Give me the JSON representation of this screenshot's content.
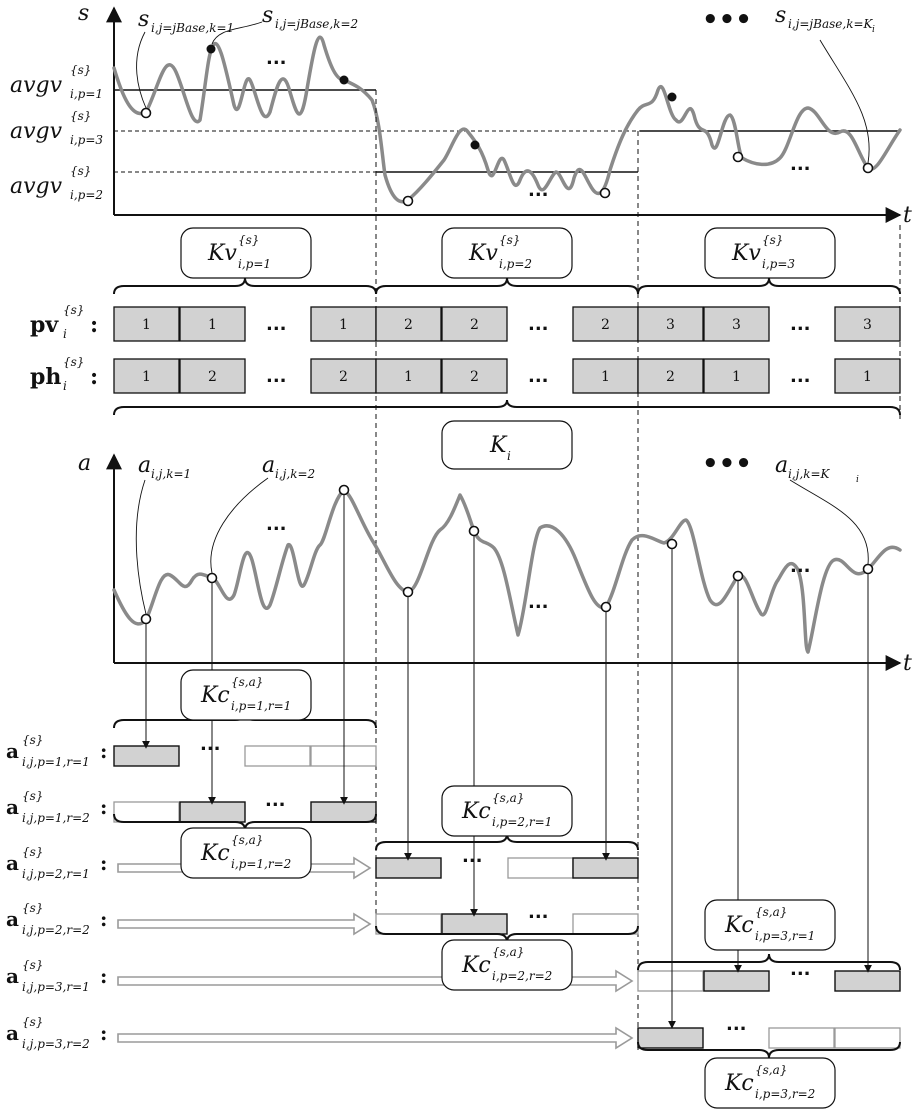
{
  "axes": {
    "top_y": "s",
    "top_x": "t",
    "bottom_y": "a",
    "bottom_x": "t"
  },
  "avg_labels": [
    {
      "base": "avgv",
      "sup": "{s}",
      "sub": "i,p=1"
    },
    {
      "base": "avgv",
      "sup": "{s}",
      "sub": "i,p=3"
    },
    {
      "base": "avgv",
      "sup": "{s}",
      "sub": "i,p=2"
    }
  ],
  "s_annotations": [
    {
      "base": "s",
      "sub": "i,j=jBase,k=1"
    },
    {
      "base": "s",
      "sub": "i,j=jBase,k=2"
    },
    {
      "base": "s",
      "sub": "i,j=jBase,k=K",
      "subsub": "i"
    }
  ],
  "a_annotations": [
    {
      "base": "a",
      "sub": "i,j,k=1"
    },
    {
      "base": "a",
      "sub": "i,j,k=2"
    },
    {
      "base": "a",
      "sub": "i,j,k=K",
      "subsub": "i"
    }
  ],
  "kv_boxes": [
    {
      "base": "Kv",
      "sup": "{s}",
      "sub": "i,p=1"
    },
    {
      "base": "Kv",
      "sup": "{s}",
      "sub": "i,p=2"
    },
    {
      "base": "Kv",
      "sup": "{s}",
      "sub": "i,p=3"
    }
  ],
  "ki_box": {
    "base": "K",
    "sub": "i"
  },
  "pv_row": {
    "base": "pv",
    "sup": "{s}",
    "sub": "i",
    "cells": [
      "1",
      "1",
      "1",
      "2",
      "2",
      "2",
      "3",
      "3",
      "3"
    ]
  },
  "ph_row": {
    "base": "ph",
    "sup": "{s}",
    "sub": "i",
    "cells": [
      "1",
      "2",
      "2",
      "1",
      "2",
      "1",
      "2",
      "1",
      "1"
    ]
  },
  "a_rows": [
    {
      "base": "a",
      "sup": "{s}",
      "sub": "i,j,p=1,r=1"
    },
    {
      "base": "a",
      "sup": "{s}",
      "sub": "i,j,p=1,r=2"
    },
    {
      "base": "a",
      "sup": "{s}",
      "sub": "i,j,p=2,r=1"
    },
    {
      "base": "a",
      "sup": "{s}",
      "sub": "i,j,p=2,r=2"
    },
    {
      "base": "a",
      "sup": "{s}",
      "sub": "i,j,p=3,r=1"
    },
    {
      "base": "a",
      "sup": "{s}",
      "sub": "i,j,p=3,r=2"
    }
  ],
  "kc_boxes": [
    {
      "base": "Kc",
      "sup": "{s,a}",
      "sub": "i,p=1,r=1"
    },
    {
      "base": "Kc",
      "sup": "{s,a}",
      "sub": "i,p=1,r=2"
    },
    {
      "base": "Kc",
      "sup": "{s,a}",
      "sub": "i,p=2,r=1"
    },
    {
      "base": "Kc",
      "sup": "{s,a}",
      "sub": "i,p=2,r=2"
    },
    {
      "base": "Kc",
      "sup": "{s,a}",
      "sub": "i,p=3,r=1"
    },
    {
      "base": "Kc",
      "sup": "{s,a}",
      "sub": "i,p=3,r=2"
    }
  ],
  "ellipsis": "•••",
  "small_ellipsis": "...",
  "colors": {
    "line": "#111111",
    "curve": "#8a8a8a",
    "fill": "#d2d2d2",
    "empty_stroke": "#9a9a9a"
  }
}
